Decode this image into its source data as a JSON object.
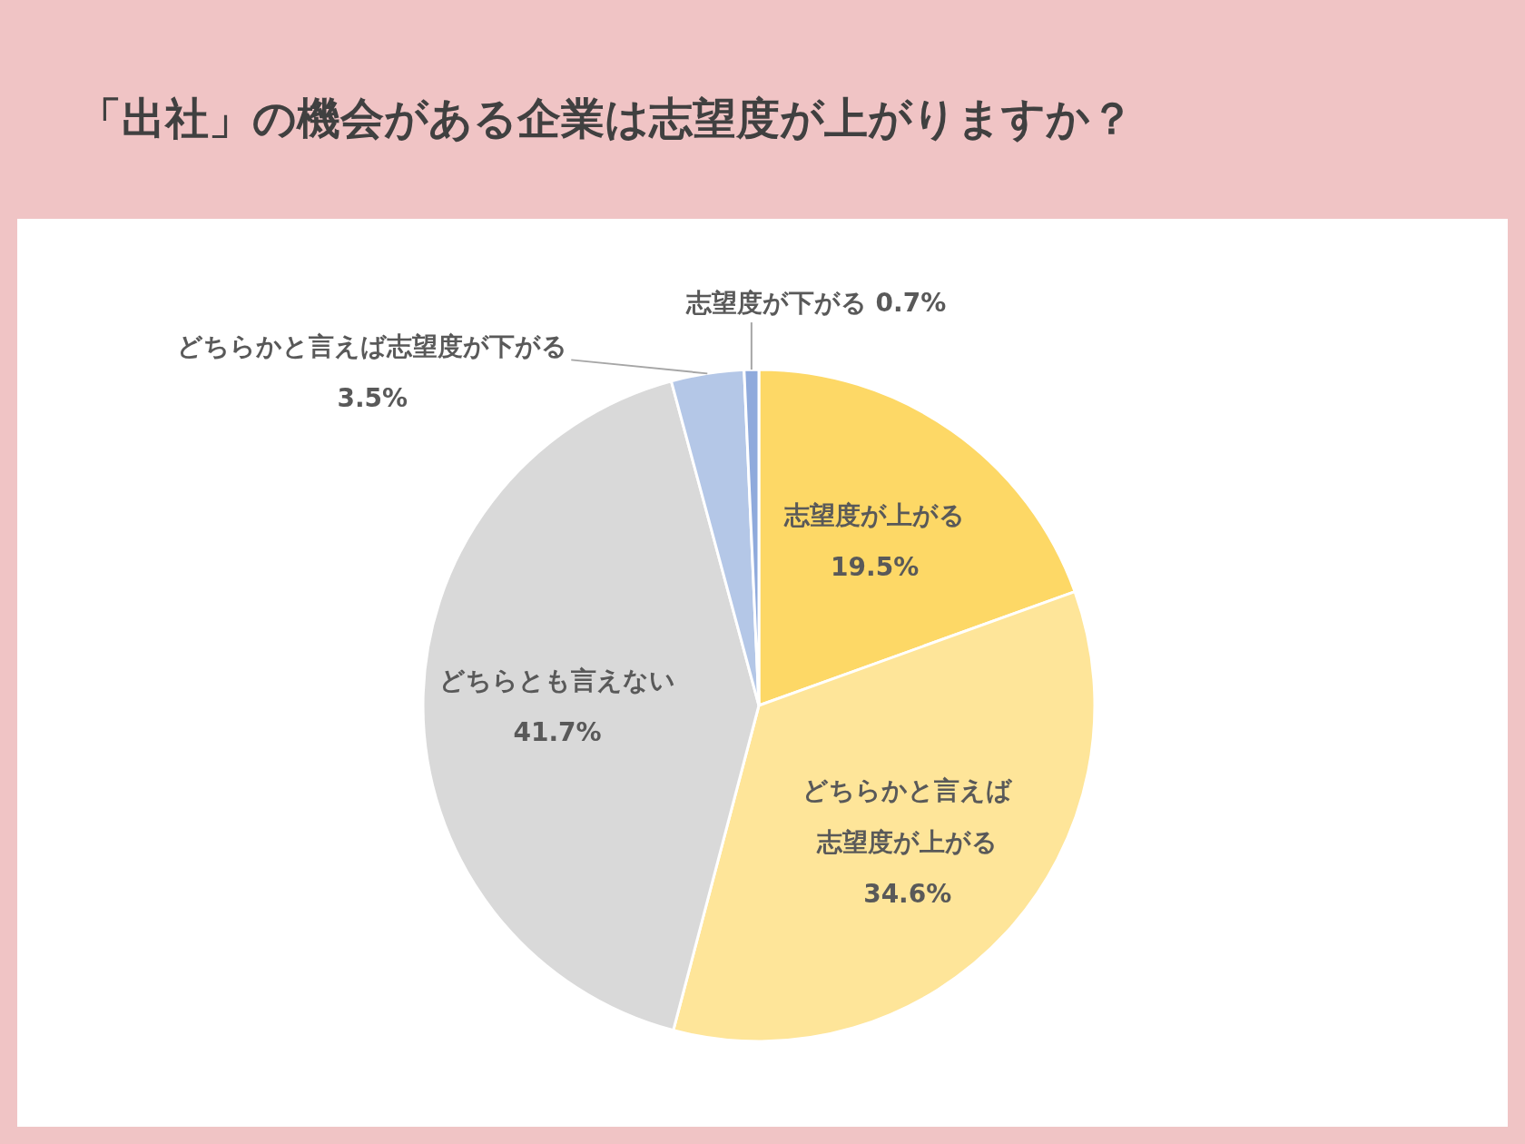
{
  "chart_data": {
    "type": "pie",
    "title": "「出社」の機会がある企業は志望度が上がりますか？",
    "categories": [
      "志望度が上がる",
      "どちらかと言えば志望度が上がる",
      "どちらとも言えない",
      "どちらかと言えば志望度が下がる",
      "志望度が下がる"
    ],
    "values": [
      19.5,
      34.6,
      41.7,
      3.5,
      0.7
    ],
    "colors": [
      "#fdd866",
      "#fee599",
      "#d9d9d9",
      "#b4c7e7",
      "#8faadc"
    ],
    "value_labels": [
      "19.5%",
      "34.6%",
      "41.7%",
      "3.5%",
      "0.7%"
    ]
  }
}
